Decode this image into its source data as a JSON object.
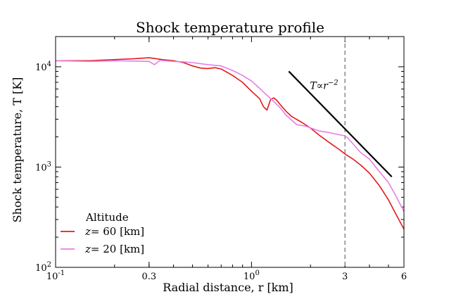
{
  "chart_data": {
    "type": "line",
    "title": "Shock temperature profile",
    "xlabel": "Radial distance, r [km]",
    "ylabel": "Shock temperature, T [K]",
    "xscale": "log",
    "yscale": "log",
    "xlim": [
      0.1,
      6
    ],
    "ylim": [
      100,
      20000
    ],
    "x_ticks": [
      {
        "value": 0.1,
        "label": "10",
        "exp": "-1"
      },
      {
        "value": 0.3,
        "label": "0.3",
        "exp": ""
      },
      {
        "value": 1,
        "label": "10",
        "exp": "0"
      },
      {
        "value": 3,
        "label": "3",
        "exp": ""
      },
      {
        "value": 6,
        "label": "6",
        "exp": ""
      }
    ],
    "y_ticks": [
      {
        "value": 100,
        "label": "10",
        "exp": "2"
      },
      {
        "value": 1000,
        "label": "10",
        "exp": "3"
      },
      {
        "value": 10000,
        "label": "10",
        "exp": "4"
      }
    ],
    "legend": {
      "title": "Altitude",
      "position": "lower-left",
      "entries": [
        {
          "prefix": "z",
          "text": "=  60 [km]",
          "series": 0
        },
        {
          "prefix": "z",
          "text": "=  20 [km]",
          "series": 1
        }
      ]
    },
    "series": [
      {
        "name": "z= 60 [km]",
        "color": "#e41a1c",
        "x": [
          0.1,
          0.15,
          0.2,
          0.25,
          0.3,
          0.35,
          0.4,
          0.45,
          0.5,
          0.55,
          0.6,
          0.65,
          0.7,
          0.8,
          0.9,
          1.0,
          1.1,
          1.15,
          1.2,
          1.25,
          1.3,
          1.35,
          1.4,
          1.5,
          1.6,
          1.8,
          2.0,
          2.2,
          2.5,
          2.8,
          3.0,
          3.3,
          3.6,
          4.0,
          4.5,
          5.0,
          5.5,
          6.0
        ],
        "y": [
          11500,
          11500,
          11800,
          12000,
          12300,
          11800,
          11500,
          11000,
          10200,
          9700,
          9600,
          9800,
          9500,
          8200,
          7000,
          5700,
          4800,
          4000,
          3700,
          4700,
          4900,
          4600,
          4200,
          3600,
          3200,
          2800,
          2450,
          2100,
          1750,
          1500,
          1350,
          1200,
          1050,
          870,
          650,
          470,
          330,
          240
        ]
      },
      {
        "name": "z= 20 [km]",
        "color": "#e77de7",
        "x": [
          0.1,
          0.15,
          0.2,
          0.25,
          0.3,
          0.32,
          0.34,
          0.4,
          0.45,
          0.5,
          0.6,
          0.7,
          0.8,
          0.9,
          1.0,
          1.1,
          1.2,
          1.3,
          1.4,
          1.5,
          1.7,
          1.9,
          2.2,
          2.5,
          2.8,
          3.0,
          3.1,
          3.3,
          3.6,
          4.0,
          4.5,
          5.0,
          5.5,
          6.0
        ],
        "y": [
          11500,
          11300,
          11500,
          11400,
          11300,
          10500,
          11600,
          11300,
          11200,
          11000,
          10500,
          10200,
          9200,
          8200,
          7200,
          6100,
          5200,
          4500,
          3900,
          3300,
          2650,
          2550,
          2300,
          2200,
          2100,
          2050,
          1950,
          1700,
          1400,
          1200,
          900,
          700,
          500,
          360
        ]
      }
    ],
    "reference_line": {
      "label": "T∝r",
      "label_exp": "−2",
      "x": [
        1.55,
        5.2
      ],
      "y": [
        9000,
        800
      ]
    },
    "vline": {
      "x": 3
    }
  }
}
